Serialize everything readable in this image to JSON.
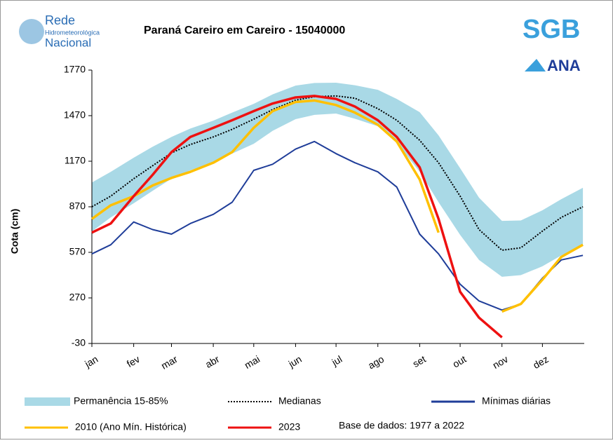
{
  "chart_data": {
    "type": "line",
    "title": "Paraná Careiro em Careiro - 15040000",
    "y_label": "Cota (cm)",
    "annotation": "Base de dados: 1977 a 2022",
    "logos": [
      "Rede",
      "Hidrometeorológica",
      "Nacional",
      "SGB",
      "ANA"
    ],
    "x": [
      1,
      15,
      32,
      46,
      60,
      74,
      91,
      105,
      121,
      135,
      152,
      166,
      182,
      196,
      213,
      227,
      244,
      258,
      274,
      288,
      305,
      319,
      335,
      349,
      365
    ],
    "xlim": [
      1,
      366
    ],
    "xticks": [
      {
        "value": 1,
        "label": "jan"
      },
      {
        "value": 32,
        "label": "fev"
      },
      {
        "value": 60,
        "label": "mar"
      },
      {
        "value": 91,
        "label": "abr"
      },
      {
        "value": 121,
        "label": "mai"
      },
      {
        "value": 152,
        "label": "jun"
      },
      {
        "value": 182,
        "label": "jul"
      },
      {
        "value": 213,
        "label": "ago"
      },
      {
        "value": 244,
        "label": "set"
      },
      {
        "value": 274,
        "label": "out"
      },
      {
        "value": 305,
        "label": "nov"
      },
      {
        "value": 335,
        "label": "dez"
      }
    ],
    "ylim": [
      -30,
      1770
    ],
    "yticks": [
      -30,
      270,
      570,
      870,
      1170,
      1470,
      1770
    ],
    "band": {
      "name": "Permanência 15-85%",
      "color": "#a9d9e6",
      "upper": [
        1030,
        1100,
        1193,
        1265,
        1330,
        1385,
        1437,
        1490,
        1548,
        1610,
        1668,
        1685,
        1687,
        1670,
        1640,
        1580,
        1493,
        1340,
        1124,
        930,
        777,
        780,
        847,
        920,
        995
      ],
      "lower": [
        708,
        800,
        893,
        975,
        1055,
        1110,
        1160,
        1220,
        1285,
        1370,
        1447,
        1475,
        1484,
        1450,
        1400,
        1290,
        1101,
        900,
        685,
        520,
        409,
        420,
        478,
        550,
        616
      ]
    },
    "series": [
      {
        "name": "Medianas",
        "color": "#000000",
        "style": "dotted",
        "values": [
          870,
          940,
          1055,
          1140,
          1225,
          1280,
          1330,
          1380,
          1447,
          1510,
          1572,
          1595,
          1600,
          1585,
          1516,
          1440,
          1308,
          1160,
          940,
          720,
          584,
          600,
          710,
          800,
          870
        ]
      },
      {
        "name": "Mínimas diárias",
        "color": "#1f3d99",
        "style": "solid",
        "values": [
          560,
          620,
          770,
          720,
          690,
          760,
          820,
          900,
          1110,
          1150,
          1250,
          1300,
          1220,
          1160,
          1100,
          1000,
          690,
          560,
          360,
          250,
          190,
          230,
          400,
          520,
          550
        ]
      },
      {
        "name": "2010 (Ano Mín. Histórica)",
        "color": "#ffc000",
        "style": "solid",
        "values": [
          790,
          880,
          940,
          1010,
          1060,
          1100,
          1160,
          1230,
          1390,
          1500,
          1560,
          1570,
          1540,
          1490,
          1410,
          1300,
          1050,
          700,
          null,
          null,
          180,
          230,
          390,
          540,
          620
        ]
      },
      {
        "name": "2023",
        "color": "#ee1111",
        "style": "solid",
        "values": [
          700,
          760,
          940,
          1080,
          1230,
          1330,
          1390,
          1440,
          1500,
          1550,
          1590,
          1600,
          1580,
          1530,
          1440,
          1330,
          1130,
          790,
          310,
          140,
          10,
          null,
          null,
          null,
          null
        ]
      }
    ]
  }
}
